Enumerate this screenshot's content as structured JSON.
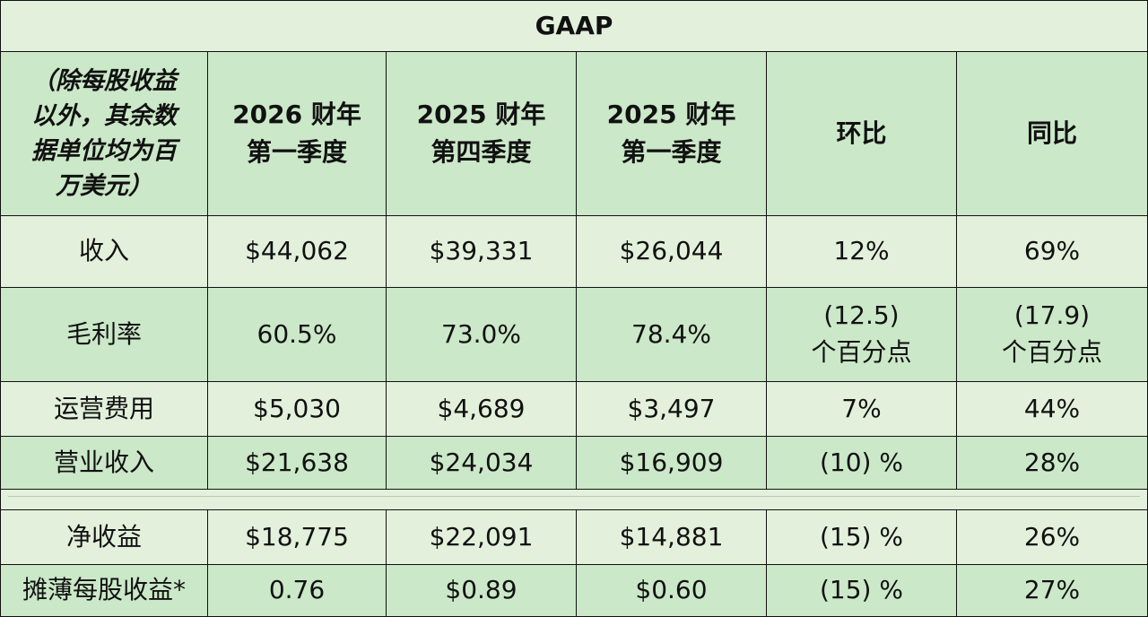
{
  "title": "GAAP",
  "header": {
    "col0": "（除每股收益\n以外，其余数\n据单位均为百\n万美元）",
    "col1": "2026 财年\n第一季度",
    "col2": "2025 财年\n第四季度",
    "col3": "2025 财年\n第一季度",
    "col4": "环比",
    "col5": "同比"
  },
  "rows": [
    {
      "label": "收入",
      "c1": "$44,062",
      "c2": "$39,331",
      "c3": "$26,044",
      "c4": "12%",
      "c5": "69%"
    },
    {
      "label": "毛利率",
      "c1": "60.5%",
      "c2": "73.0%",
      "c3": "78.4%",
      "c4": "(12.5)\n个百分点",
      "c5": "(17.9)\n个百分点"
    },
    {
      "label": "运营费用",
      "c1": "$5,030",
      "c2": "$4,689",
      "c3": "$3,497",
      "c4": "7%",
      "c5": "44%"
    },
    {
      "label": "营业收入",
      "c1": "$21,638",
      "c2": "$24,034",
      "c3": "$16,909",
      "c4": "(10) %",
      "c5": "28%"
    },
    {
      "label": "净收益",
      "c1": "$18,775",
      "c2": "$22,091",
      "c3": "$14,881",
      "c4": "(15) %",
      "c5": "26%"
    },
    {
      "label": "摊薄每股收益*",
      "c1": "0.76",
      "c2": "$0.89",
      "c3": "$0.60",
      "c4": "(15) %",
      "c5": "27%"
    }
  ],
  "colors": {
    "light_green": "#e3f1dc",
    "medium_green": "#cbe8c8",
    "border": "#111111"
  }
}
